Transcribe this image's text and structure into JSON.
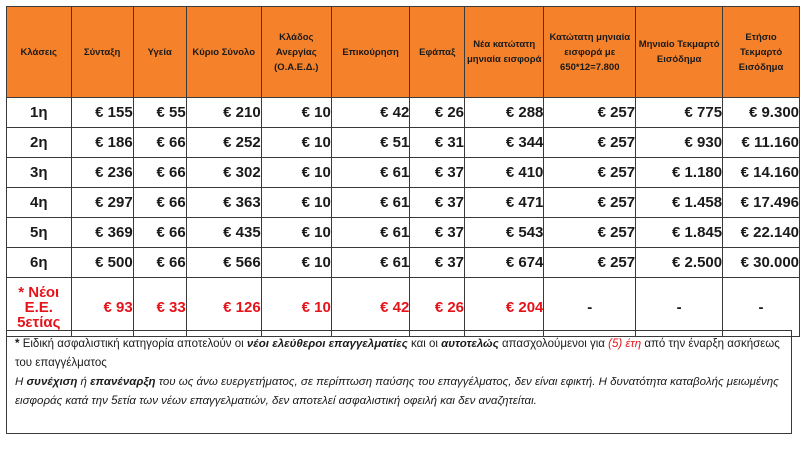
{
  "table": {
    "headers": [
      "Κλάσεις",
      "Σύνταξη",
      "Υγεία",
      "Κύριο Σύνολο",
      "Κλάδος Ανεργίας (Ο.Α.Ε.Δ.)",
      "Επικούρηση",
      "Εφάπαξ",
      "Νέα κατώτατη μηνιαία εισφορά",
      "Κατώτατη μηνιαία εισφορά με 650*12=7.800",
      "Μηνιαίο Τεκμαρτό Εισόδημα",
      "Ετήσιο Τεκμαρτό Εισόδημα"
    ],
    "rows": [
      [
        "1η",
        "€ 155",
        "€ 55",
        "€ 210",
        "€ 10",
        "€ 42",
        "€ 26",
        "€ 288",
        "€ 257",
        "€ 775",
        "€ 9.300"
      ],
      [
        "2η",
        "€ 186",
        "€ 66",
        "€ 252",
        "€ 10",
        "€ 51",
        "€ 31",
        "€ 344",
        "€ 257",
        "€ 930",
        "€ 11.160"
      ],
      [
        "3η",
        "€ 236",
        "€ 66",
        "€ 302",
        "€ 10",
        "€ 61",
        "€ 37",
        "€ 410",
        "€ 257",
        "€ 1.180",
        "€ 14.160"
      ],
      [
        "4η",
        "€ 297",
        "€ 66",
        "€ 363",
        "€ 10",
        "€ 61",
        "€ 37",
        "€ 471",
        "€ 257",
        "€ 1.458",
        "€ 17.496"
      ],
      [
        "5η",
        "€ 369",
        "€ 66",
        "€ 435",
        "€ 10",
        "€ 61",
        "€ 37",
        "€ 543",
        "€ 257",
        "€ 1.845",
        "€ 22.140"
      ],
      [
        "6η",
        "€ 500",
        "€ 66",
        "€ 566",
        "€ 10",
        "€ 61",
        "€ 37",
        "€ 674",
        "€ 257",
        "€ 2.500",
        "€ 30.000"
      ]
    ],
    "special_row": {
      "label_line1": "* Νέοι",
      "label_line2": "Ε.Ε.",
      "label_line3": "5ετίας",
      "values": [
        "€ 93",
        "€ 33",
        "€ 126",
        "€ 10",
        "€ 42",
        "€ 26",
        "€ 204",
        "-",
        "-",
        "-"
      ]
    }
  },
  "note": {
    "p1_star": "*",
    "p1_a": "Ειδική ασφαλιστική κατηγορία αποτελούν οι",
    "p1_b": "νέοι ελεύθεροι επαγγελματίες",
    "p1_c": "και οι",
    "p1_d": "αυτοτελώς",
    "p1_e": "απασχολούμενοι για",
    "p1_f": "(5) έτη",
    "p1_g": "από την έναρξη ασκήσεως του επαγγέλματος",
    "p2_a": "Η",
    "p2_b": "συνέχιση",
    "p2_c": "ή",
    "p2_d": "επανέναρξη",
    "p2_e": "του ως άνω ευεργετήματος, σε περίπτωση παύσης του επαγγέλματος, δεν είναι εφικτή. Η δυνατότητα καταβολής μειωμένης εισφοράς κατά την 5ετία των νέων επαγγελματιών, δεν αποτελεί ασφαλιστική οφειλή και δεν αναζητείται."
  },
  "colors": {
    "header_bg": "#f5822a",
    "accent_red": "#e5141b",
    "border": "#3a3a3a"
  }
}
